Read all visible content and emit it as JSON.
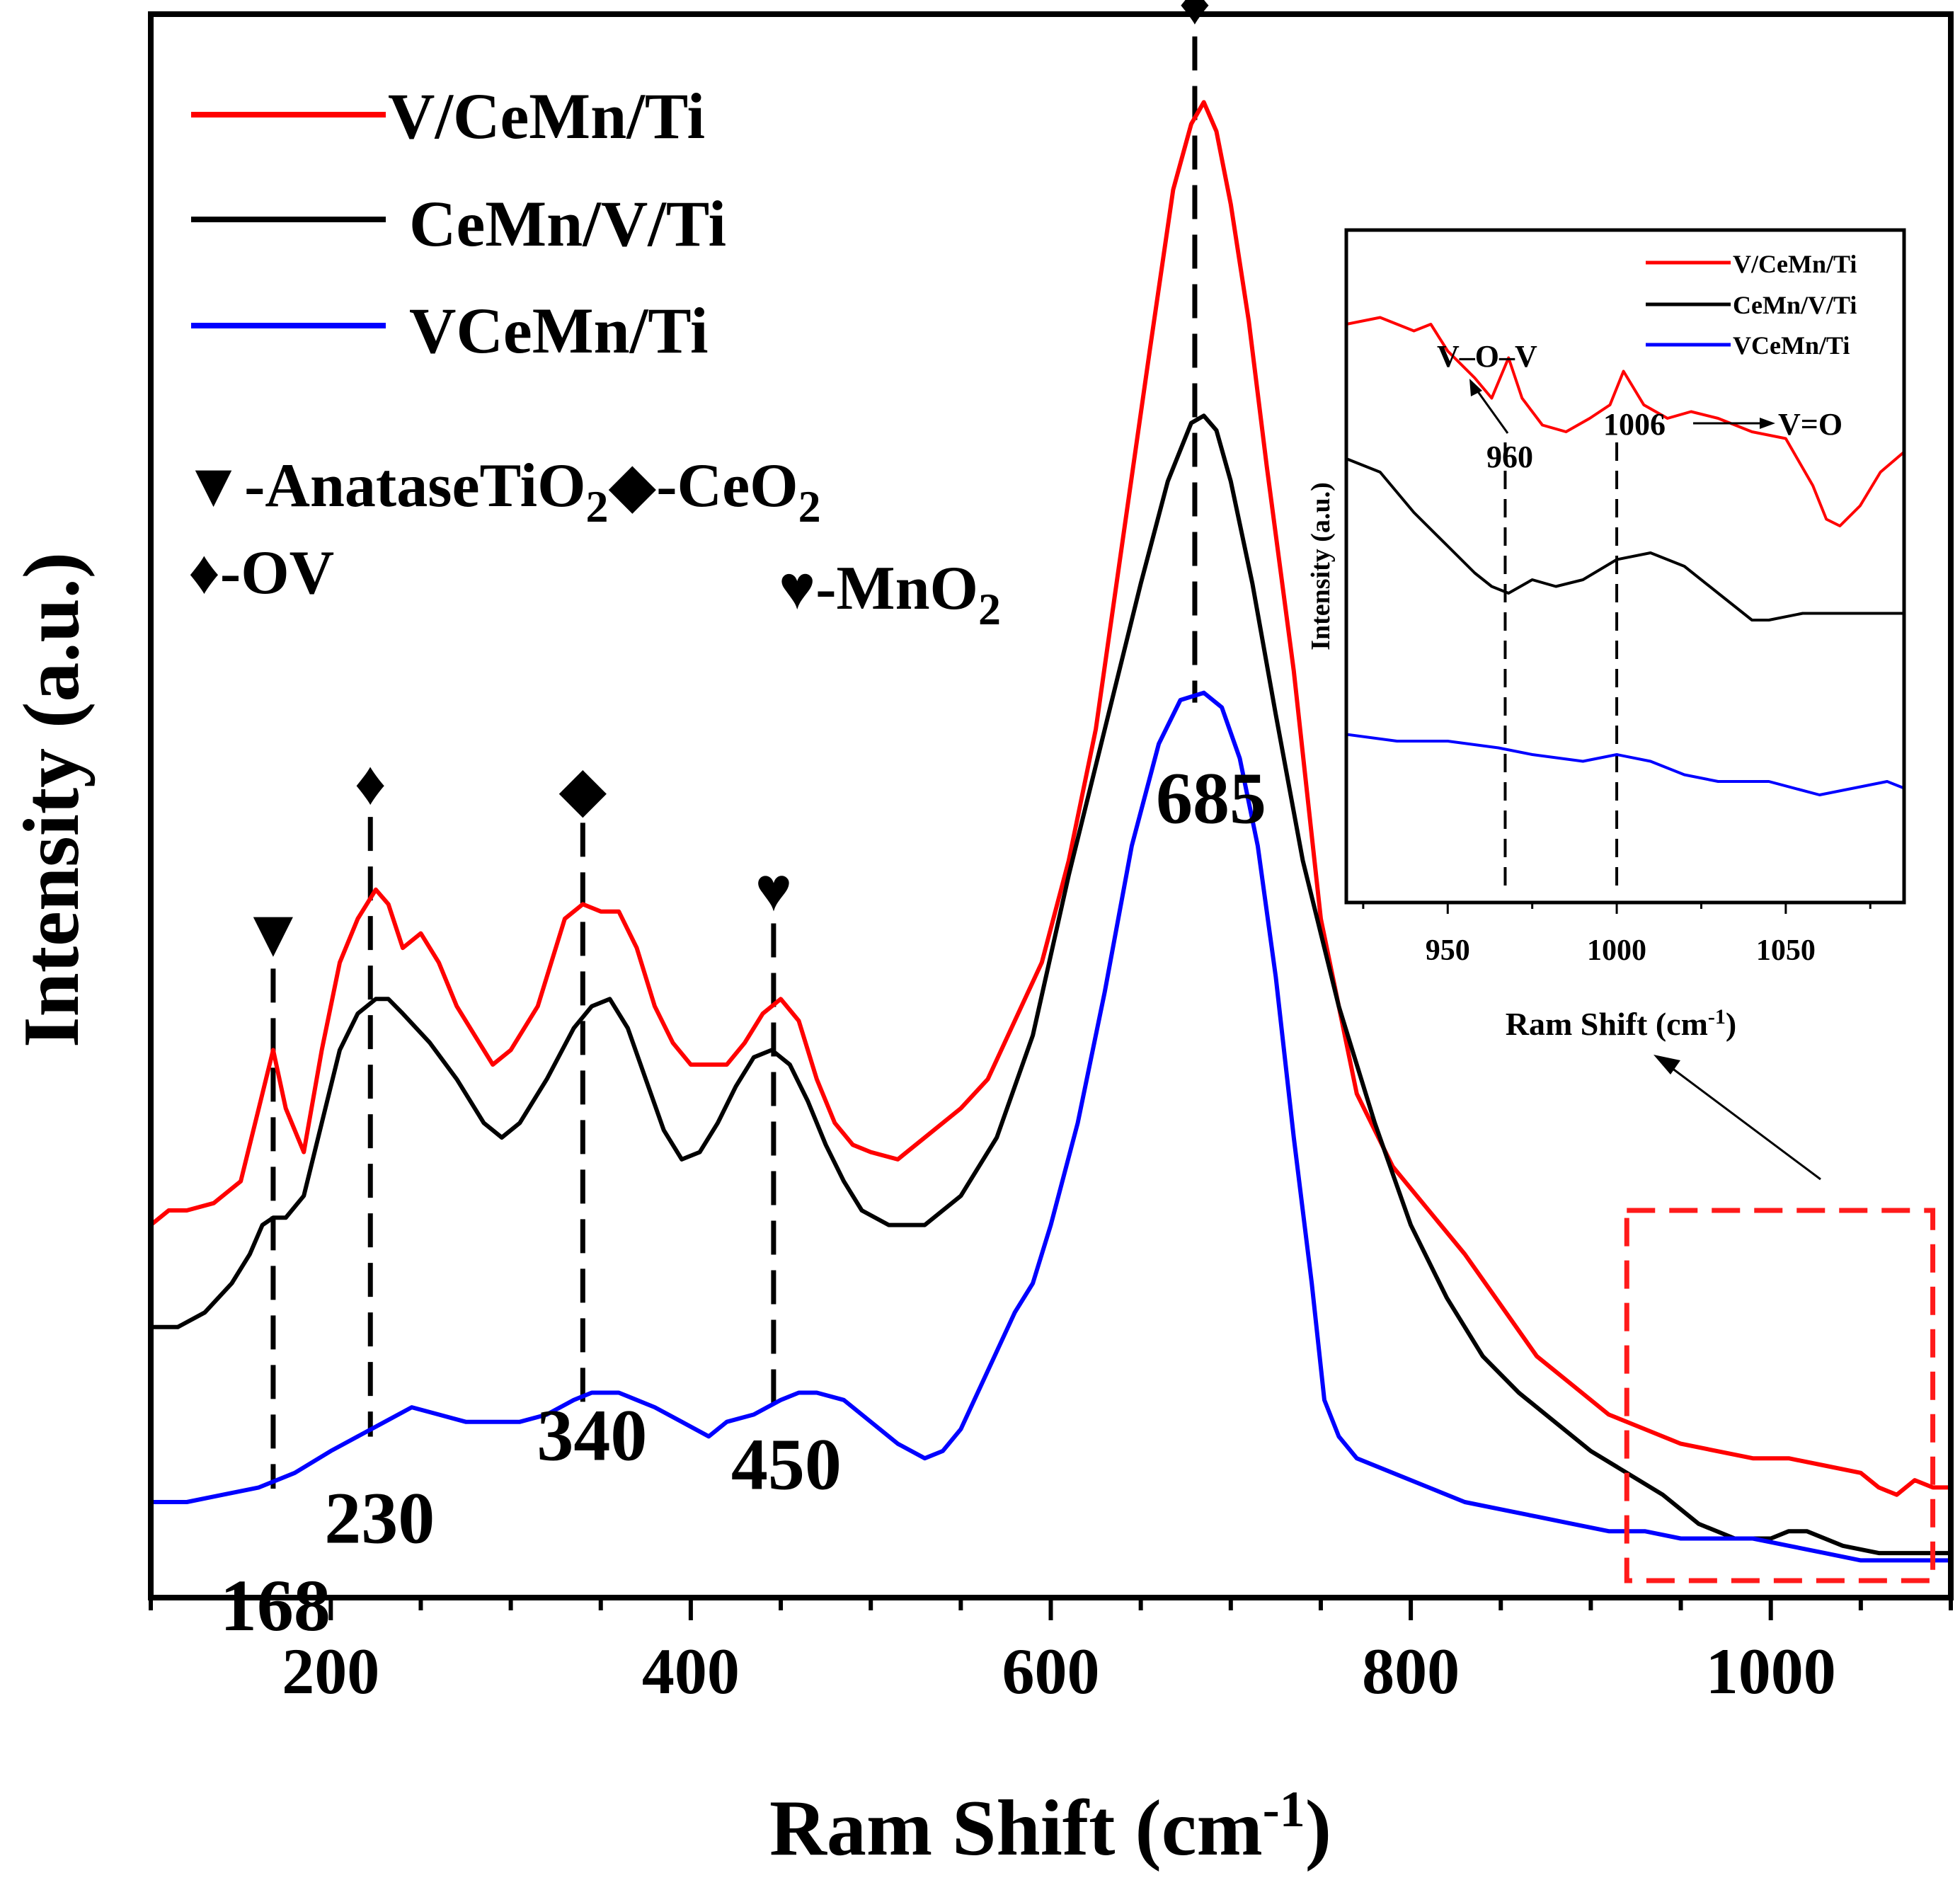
{
  "chart_data": [
    {
      "type": "line",
      "title": "",
      "xlabel": "Ram Shift (cm",
      "xlabel_sup": "-1",
      "xlabel_close": ")",
      "ylabel": "Intensity (a.u.)",
      "xlim": [
        100,
        1100
      ],
      "ylim": [
        0,
        100
      ],
      "x_ticks": [
        200,
        400,
        600,
        800,
        1000
      ],
      "series": [
        {
          "name": "V/CeMn/Ti",
          "color": "#ff0000",
          "x": [
            100,
            110,
            120,
            135,
            150,
            160,
            168,
            175,
            185,
            195,
            205,
            215,
            225,
            232,
            240,
            250,
            260,
            270,
            280,
            290,
            300,
            315,
            330,
            340,
            350,
            360,
            370,
            380,
            390,
            400,
            410,
            420,
            430,
            440,
            450,
            460,
            470,
            480,
            490,
            500,
            515,
            530,
            550,
            565,
            580,
            595,
            610,
            625,
            640,
            655,
            668,
            678,
            685,
            692,
            700,
            710,
            720,
            735,
            750,
            770,
            790,
            810,
            830,
            850,
            870,
            890,
            910,
            930,
            950,
            970,
            990,
            1010,
            1030,
            1050,
            1060,
            1070,
            1080,
            1090,
            1100
          ],
          "y": [
            24,
            25,
            25,
            25.5,
            27,
            32,
            36,
            32,
            29,
            36,
            42,
            45,
            47,
            46,
            43,
            44,
            42,
            39,
            37,
            35,
            36,
            39,
            45,
            46,
            45.5,
            45.5,
            43,
            39,
            36.5,
            35,
            35,
            35,
            36.5,
            38.5,
            39.5,
            38,
            34,
            31,
            29.5,
            29,
            28.5,
            30,
            32,
            34,
            38,
            42,
            49,
            58,
            71,
            84,
            95,
            99.5,
            101,
            99,
            94,
            86,
            76,
            62,
            45,
            33,
            28,
            25,
            22,
            18.5,
            15,
            13,
            11,
            10,
            9,
            8.5,
            8,
            8,
            7.5,
            7,
            6,
            5.5,
            6.5,
            6,
            6
          ]
        },
        {
          "name": "CeMn/V/Ti",
          "color": "#000000",
          "x": [
            100,
            115,
            130,
            145,
            155,
            162,
            168,
            175,
            185,
            195,
            205,
            215,
            225,
            232,
            240,
            255,
            270,
            285,
            295,
            305,
            320,
            335,
            345,
            355,
            365,
            375,
            385,
            395,
            405,
            415,
            425,
            435,
            445,
            455,
            465,
            475,
            485,
            495,
            510,
            530,
            550,
            570,
            590,
            610,
            630,
            650,
            665,
            678,
            685,
            692,
            700,
            712,
            725,
            740,
            760,
            780,
            800,
            820,
            840,
            860,
            880,
            900,
            920,
            940,
            960,
            980,
            1000,
            1010,
            1020,
            1040,
            1060,
            1080,
            1100
          ],
          "y": [
            17,
            17,
            18,
            20,
            22,
            24,
            24.5,
            24.5,
            26,
            31,
            36,
            38.5,
            39.5,
            39.5,
            38.5,
            36.5,
            34,
            31,
            30,
            31,
            34,
            37.5,
            39,
            39.5,
            37.5,
            34,
            30.5,
            28.5,
            29,
            31,
            33.5,
            35.5,
            36,
            35,
            32.5,
            29.5,
            27,
            25,
            24,
            24,
            26,
            30,
            37,
            48,
            58,
            68,
            75,
            79,
            79.5,
            78.5,
            75,
            68,
            59,
            49,
            39,
            31,
            24,
            19,
            15,
            12.5,
            10.5,
            8.5,
            7,
            5.5,
            3.5,
            2.5,
            2.5,
            3,
            3,
            2,
            1.5,
            1.5,
            1.5
          ]
        },
        {
          "name": "VCeMn/Ti",
          "color": "#0000ff",
          "x": [
            100,
            120,
            140,
            160,
            180,
            200,
            215,
            230,
            245,
            260,
            275,
            290,
            305,
            320,
            335,
            345,
            360,
            370,
            380,
            395,
            410,
            420,
            435,
            450,
            460,
            470,
            485,
            500,
            515,
            530,
            540,
            550,
            565,
            580,
            590,
            600,
            615,
            630,
            645,
            660,
            672,
            685,
            695,
            705,
            715,
            725,
            735,
            745,
            752,
            760,
            770,
            790,
            810,
            830,
            850,
            870,
            890,
            910,
            930,
            950,
            970,
            990,
            1010,
            1030,
            1050,
            1070,
            1085,
            1100
          ],
          "y": [
            5,
            5,
            5.5,
            6,
            7,
            8.5,
            9.5,
            10.5,
            11.5,
            11,
            10.5,
            10.5,
            10.5,
            11,
            12,
            12.5,
            12.5,
            12,
            11.5,
            10.5,
            9.5,
            10.5,
            11,
            12,
            12.5,
            12.5,
            12,
            10.5,
            9,
            8,
            8.5,
            10,
            14,
            18,
            20,
            24,
            31,
            40,
            50,
            57,
            60,
            60.5,
            59.5,
            56,
            50,
            41,
            30,
            20,
            12,
            9.5,
            8,
            7,
            6,
            5,
            4.5,
            4,
            3.5,
            3,
            3,
            2.5,
            2.5,
            2.5,
            2,
            1.5,
            1,
            1,
            1,
            1
          ]
        }
      ],
      "legend": {
        "position": "top-left",
        "labels": [
          "V/CeMn/Ti",
          "CeMn/V/Ti",
          "VCeMn/Ti"
        ]
      },
      "phase_legend": {
        "anatase_symbol": "▼",
        "anatase_label": "-AnataseTiO",
        "anatase_sub": "2",
        "ceo2_symbol": "◆",
        "ceo2_label": "-CeO",
        "ceo2_sub": "2",
        "ov_symbol": "♦",
        "ov_label": "-OV",
        "mno2_symbol": "♥",
        "mno2_label": "-MnO",
        "mno2_sub": "2"
      },
      "peaks": [
        {
          "label": "168",
          "x": 168,
          "symbol": "▼"
        },
        {
          "label": "230",
          "x": 222,
          "symbol": "♦"
        },
        {
          "label": "340",
          "x": 340,
          "symbol": "◆"
        },
        {
          "label": "450",
          "x": 446,
          "symbol": "♥"
        },
        {
          "label": "685",
          "x": 680,
          "symbol": "♦"
        }
      ],
      "zoom_region": {
        "xlim": [
          920,
          1090
        ],
        "ylim": [
          0,
          25
        ]
      }
    },
    {
      "type": "line",
      "title": "",
      "xlabel": "Ram Shift (cm",
      "xlabel_sup": "-1",
      "xlabel_close": ")",
      "ylabel": "Intensity (a.u.)",
      "xlim": [
        920,
        1085
      ],
      "ylim": [
        0,
        100
      ],
      "x_ticks": [
        950,
        1000,
        1050
      ],
      "series": [
        {
          "name": "V/CeMn/Ti",
          "color": "#ff0000",
          "x": [
            920,
            930,
            940,
            945,
            950,
            958,
            963,
            968,
            972,
            978,
            985,
            992,
            998,
            1002,
            1008,
            1015,
            1022,
            1030,
            1040,
            1050,
            1058,
            1062,
            1066,
            1072,
            1078,
            1085
          ],
          "y": [
            86,
            87,
            85,
            86,
            82,
            78,
            75,
            81,
            75,
            71,
            70,
            72,
            74,
            79,
            74,
            72,
            73,
            72,
            70,
            69,
            62,
            57,
            56,
            59,
            64,
            67
          ]
        },
        {
          "name": "CeMn/V/Ti",
          "color": "#000000",
          "x": [
            920,
            930,
            940,
            950,
            958,
            963,
            968,
            975,
            982,
            990,
            1000,
            1010,
            1020,
            1030,
            1040,
            1045,
            1055,
            1065,
            1075,
            1085
          ],
          "y": [
            66,
            64,
            58,
            53,
            49,
            47,
            46,
            48,
            47,
            48,
            51,
            52,
            50,
            46,
            42,
            42,
            43,
            43,
            43,
            43
          ]
        },
        {
          "name": "VCeMn/Ti",
          "color": "#0000ff",
          "x": [
            920,
            935,
            950,
            965,
            975,
            990,
            1000,
            1010,
            1020,
            1030,
            1045,
            1060,
            1070,
            1080,
            1085
          ],
          "y": [
            25,
            24,
            24,
            23,
            22,
            21,
            22,
            21,
            19,
            18,
            18,
            16,
            17,
            18,
            17
          ]
        }
      ],
      "legend": {
        "position": "top-right",
        "labels": [
          "V/CeMn/Ti",
          "CeMn/V/Ti",
          "VCeMn/Ti"
        ]
      },
      "annotations": {
        "vov_label": "V–O–V",
        "vov_peak": "960",
        "vov_x": 967,
        "vo_peak": "1006",
        "vo_label": "V=O",
        "vo_x": 1000
      }
    }
  ]
}
